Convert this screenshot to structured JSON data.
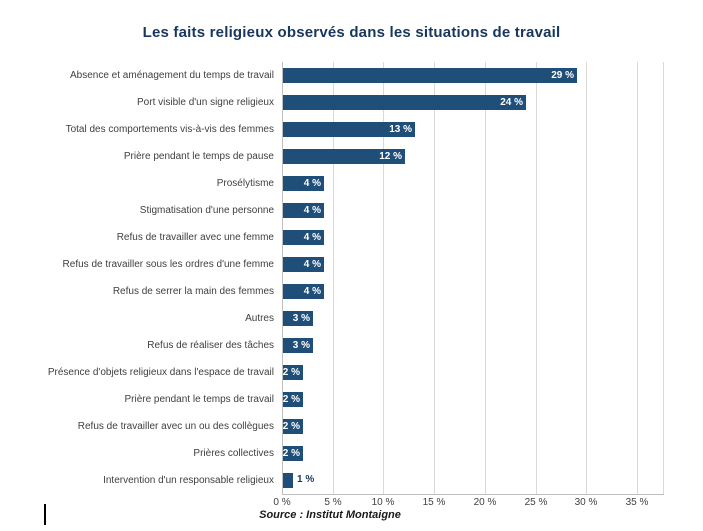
{
  "title": "Les faits religieux observés dans les situations de travail",
  "source": "Source : Institut Montaigne",
  "colors": {
    "bar": "#1F4E79",
    "title": "#17375E",
    "gridline": "#D9D9D9",
    "axis": "#BFBFBF",
    "value_label_inside": "#FFFFFF",
    "value_label_outside": "#17375E"
  },
  "chart_data": {
    "type": "bar",
    "orientation": "horizontal",
    "title": "Les faits religieux observés dans les situations de travail",
    "categories": [
      "Absence et aménagement du temps de travail",
      "Port visible d'un signe religieux",
      "Total des comportements vis-à-vis des femmes",
      "Prière pendant le temps de pause",
      "Prosélytisme",
      "Stigmatisation d'une personne",
      "Refus de travailler avec une femme",
      "Refus de travailler sous les ordres d'une femme",
      "Refus de serrer la main des femmes",
      "Autres",
      "Refus de réaliser des tâches",
      "Présence d'objets religieux dans l'espace de travail",
      "Prière pendant le temps de travail",
      "Refus de travailler avec un ou des collègues",
      "Prières collectives",
      "Intervention d'un responsable religieux"
    ],
    "values": [
      29,
      24,
      13,
      12,
      4,
      4,
      4,
      4,
      4,
      3,
      3,
      2,
      2,
      2,
      2,
      1
    ],
    "value_labels": [
      "29 %",
      "24 %",
      "13 %",
      "12 %",
      "4 %",
      "4 %",
      "4 %",
      "4 %",
      "4 %",
      "3 %",
      "3 %",
      "2 %",
      "2 %",
      "2 %",
      "2 %",
      "1 %"
    ],
    "x_ticks": [
      "0 %",
      "5 %",
      "10 %",
      "15 %",
      "20 %",
      "25 %",
      "30 %",
      "35 %"
    ],
    "xlim": [
      0,
      35
    ],
    "grid": true,
    "legend": false
  }
}
